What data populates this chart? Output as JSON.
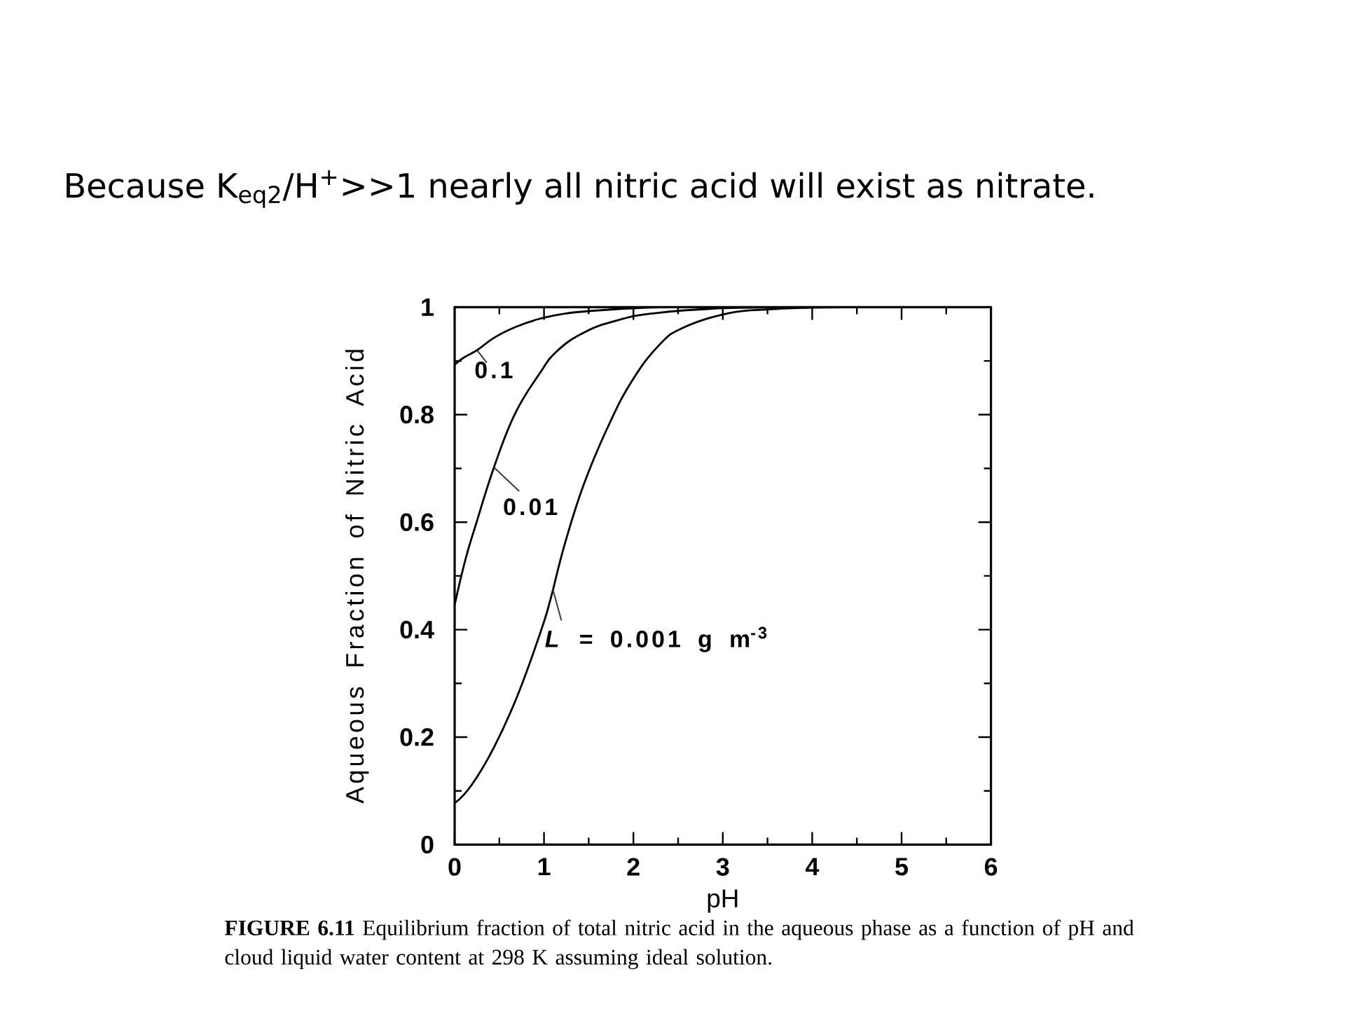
{
  "chart_data": {
    "type": "line",
    "title": "Because K$_{eq2}$/H$^{+}$>>1 nearly all nitric acid will exist as nitrate.",
    "xlabel": "pH",
    "ylabel": "Aqueous Fraction of Nitric Acid",
    "xlim": [
      0,
      6
    ],
    "ylim": [
      0,
      1
    ],
    "xticks": [
      0,
      1,
      2,
      3,
      4,
      5,
      6
    ],
    "yticks": [
      0,
      0.2,
      0.4,
      0.6,
      0.8,
      1
    ],
    "series": [
      {
        "name": "0.1",
        "color": "#000000",
        "x": [
          0,
          0.1,
          0.26,
          0.44,
          0.68,
          0.94,
          1.2,
          1.52,
          2.14,
          2.6,
          3,
          4,
          5,
          6
        ],
        "values": [
          0.893,
          0.906,
          0.921,
          0.943,
          0.963,
          0.978,
          0.987,
          0.993,
          0.999,
          1,
          1,
          1,
          1,
          1
        ]
      },
      {
        "name": "0.01",
        "color": "#000000",
        "x": [
          0,
          0.12,
          0.24,
          0.44,
          0.67,
          0.94,
          1.15,
          1.46,
          1.83,
          2.25,
          3,
          4,
          5,
          6
        ],
        "values": [
          0.446,
          0.53,
          0.597,
          0.702,
          0.8,
          0.874,
          0.919,
          0.954,
          0.976,
          0.989,
          0.998,
          1,
          1,
          1
        ]
      },
      {
        "name": "*L* = 0.001 g m$^{-3}$",
        "color": "#000000",
        "x": [
          0,
          0.19,
          0.44,
          0.7,
          0.96,
          1.07,
          1.23,
          1.44,
          1.7,
          1.97,
          2.28,
          2.56,
          3.07,
          3.54,
          4,
          5,
          6
        ],
        "values": [
          0.077,
          0.111,
          0.181,
          0.276,
          0.395,
          0.455,
          0.558,
          0.668,
          0.772,
          0.859,
          0.928,
          0.962,
          0.989,
          0.996,
          0.999,
          1,
          1
        ]
      }
    ],
    "annotations": [
      "**FIGURE 6.11** Equilibrium fraction of total nitric acid in the aqueous phase as a function of pH and cloud liquid water content at 298 K assuming ideal solution."
    ]
  }
}
